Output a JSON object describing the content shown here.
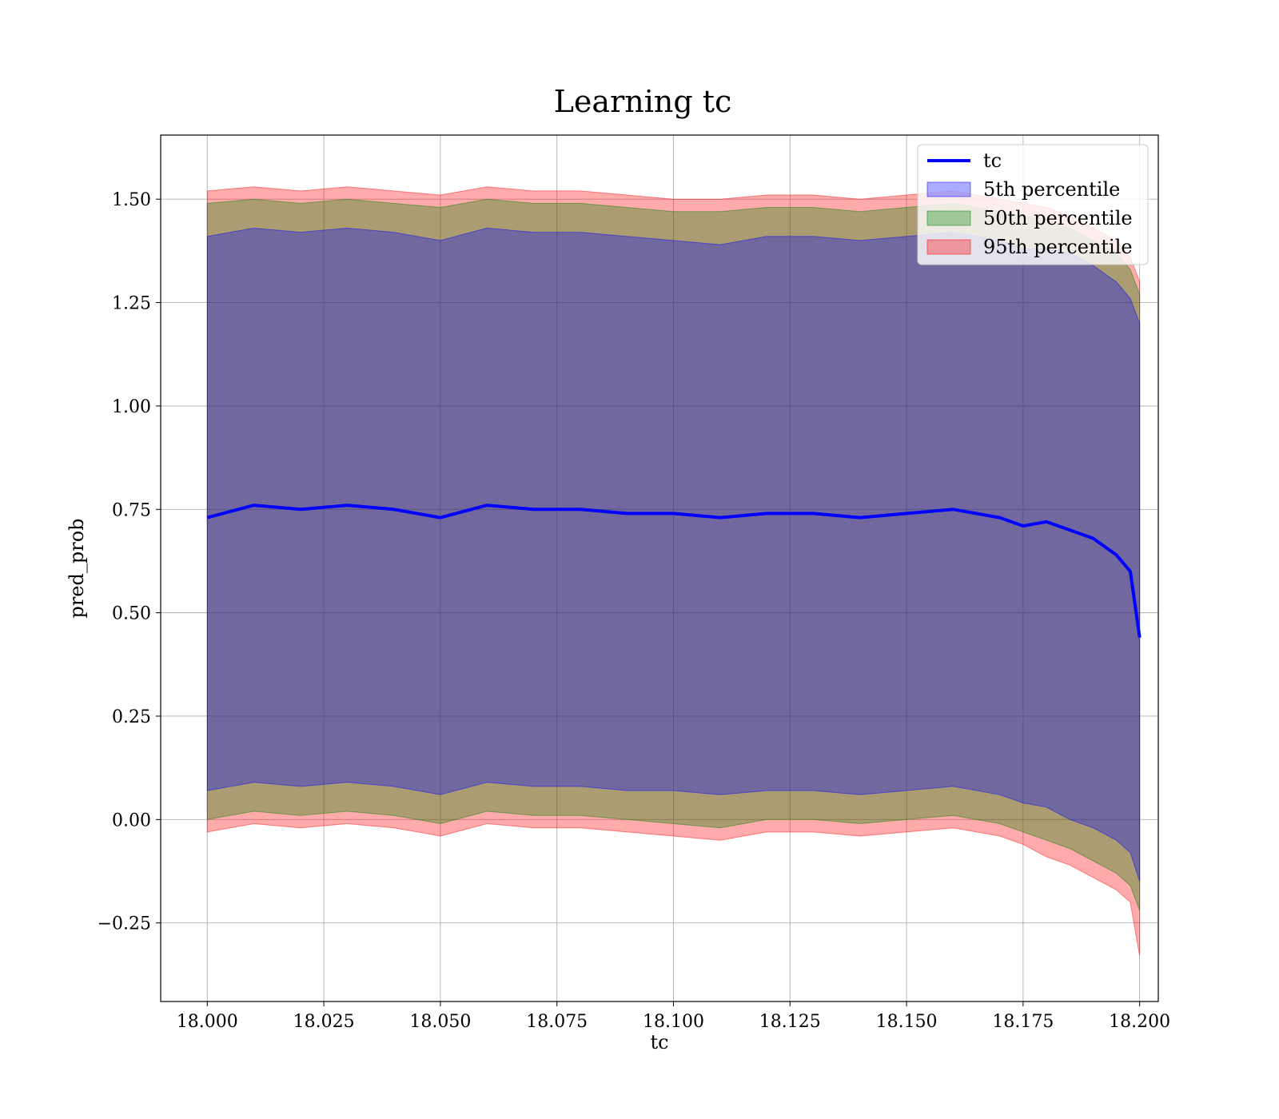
{
  "chart_data": {
    "type": "area",
    "title": "Learning tc",
    "xlabel": "tc",
    "ylabel": "pred_prob",
    "xlim": [
      17.99,
      18.204
    ],
    "ylim": [
      -0.44,
      1.655
    ],
    "x_ticks": [
      18.0,
      18.025,
      18.05,
      18.075,
      18.1,
      18.125,
      18.15,
      18.175,
      18.2
    ],
    "x_tick_labels": [
      "18.000",
      "18.025",
      "18.050",
      "18.075",
      "18.100",
      "18.125",
      "18.150",
      "18.175",
      "18.200"
    ],
    "y_ticks": [
      -0.25,
      0.0,
      0.25,
      0.5,
      0.75,
      1.0,
      1.25,
      1.5
    ],
    "y_tick_labels": [
      "−0.25",
      "0.00",
      "0.25",
      "0.50",
      "0.75",
      "1.00",
      "1.25",
      "1.50"
    ],
    "grid": true,
    "legend_position": "top-right",
    "x": [
      18.0,
      18.01,
      18.02,
      18.03,
      18.04,
      18.05,
      18.06,
      18.07,
      18.08,
      18.09,
      18.1,
      18.11,
      18.12,
      18.13,
      18.14,
      18.15,
      18.16,
      18.17,
      18.175,
      18.18,
      18.185,
      18.19,
      18.195,
      18.198,
      18.2
    ],
    "series": [
      {
        "name": "tc",
        "kind": "line",
        "color": "#0000ff",
        "values": [
          0.73,
          0.76,
          0.75,
          0.76,
          0.75,
          0.73,
          0.76,
          0.75,
          0.75,
          0.74,
          0.74,
          0.73,
          0.74,
          0.74,
          0.73,
          0.74,
          0.75,
          0.73,
          0.71,
          0.72,
          0.7,
          0.68,
          0.64,
          0.6,
          0.44
        ]
      },
      {
        "name": "5th percentile",
        "kind": "band",
        "color": "#0000ff",
        "lower": [
          0.07,
          0.09,
          0.08,
          0.09,
          0.08,
          0.06,
          0.09,
          0.08,
          0.08,
          0.07,
          0.07,
          0.06,
          0.07,
          0.07,
          0.06,
          0.07,
          0.08,
          0.06,
          0.04,
          0.03,
          0.0,
          -0.02,
          -0.05,
          -0.08,
          -0.15
        ],
        "upper": [
          1.41,
          1.43,
          1.42,
          1.43,
          1.42,
          1.4,
          1.43,
          1.42,
          1.42,
          1.41,
          1.4,
          1.39,
          1.41,
          1.41,
          1.4,
          1.41,
          1.42,
          1.4,
          1.38,
          1.38,
          1.37,
          1.34,
          1.3,
          1.26,
          1.2
        ]
      },
      {
        "name": "50th percentile",
        "kind": "band",
        "color": "#008000",
        "lower": [
          0.0,
          0.02,
          0.01,
          0.02,
          0.01,
          -0.01,
          0.02,
          0.01,
          0.01,
          0.0,
          -0.01,
          -0.02,
          0.0,
          0.0,
          -0.01,
          0.0,
          0.01,
          -0.01,
          -0.03,
          -0.05,
          -0.07,
          -0.1,
          -0.13,
          -0.16,
          -0.22
        ],
        "upper": [
          1.49,
          1.5,
          1.49,
          1.5,
          1.49,
          1.48,
          1.5,
          1.49,
          1.49,
          1.48,
          1.47,
          1.47,
          1.48,
          1.48,
          1.47,
          1.48,
          1.49,
          1.47,
          1.46,
          1.45,
          1.43,
          1.4,
          1.37,
          1.33,
          1.27
        ]
      },
      {
        "name": "95th percentile",
        "kind": "band",
        "color": "#ff0000",
        "lower": [
          -0.03,
          -0.01,
          -0.02,
          -0.01,
          -0.02,
          -0.04,
          -0.01,
          -0.02,
          -0.02,
          -0.03,
          -0.04,
          -0.05,
          -0.03,
          -0.03,
          -0.04,
          -0.03,
          -0.02,
          -0.04,
          -0.06,
          -0.09,
          -0.11,
          -0.14,
          -0.17,
          -0.2,
          -0.33
        ],
        "upper": [
          1.52,
          1.53,
          1.52,
          1.53,
          1.52,
          1.51,
          1.53,
          1.52,
          1.52,
          1.51,
          1.5,
          1.5,
          1.51,
          1.51,
          1.5,
          1.51,
          1.52,
          1.5,
          1.49,
          1.48,
          1.46,
          1.43,
          1.4,
          1.36,
          1.3
        ]
      }
    ]
  }
}
